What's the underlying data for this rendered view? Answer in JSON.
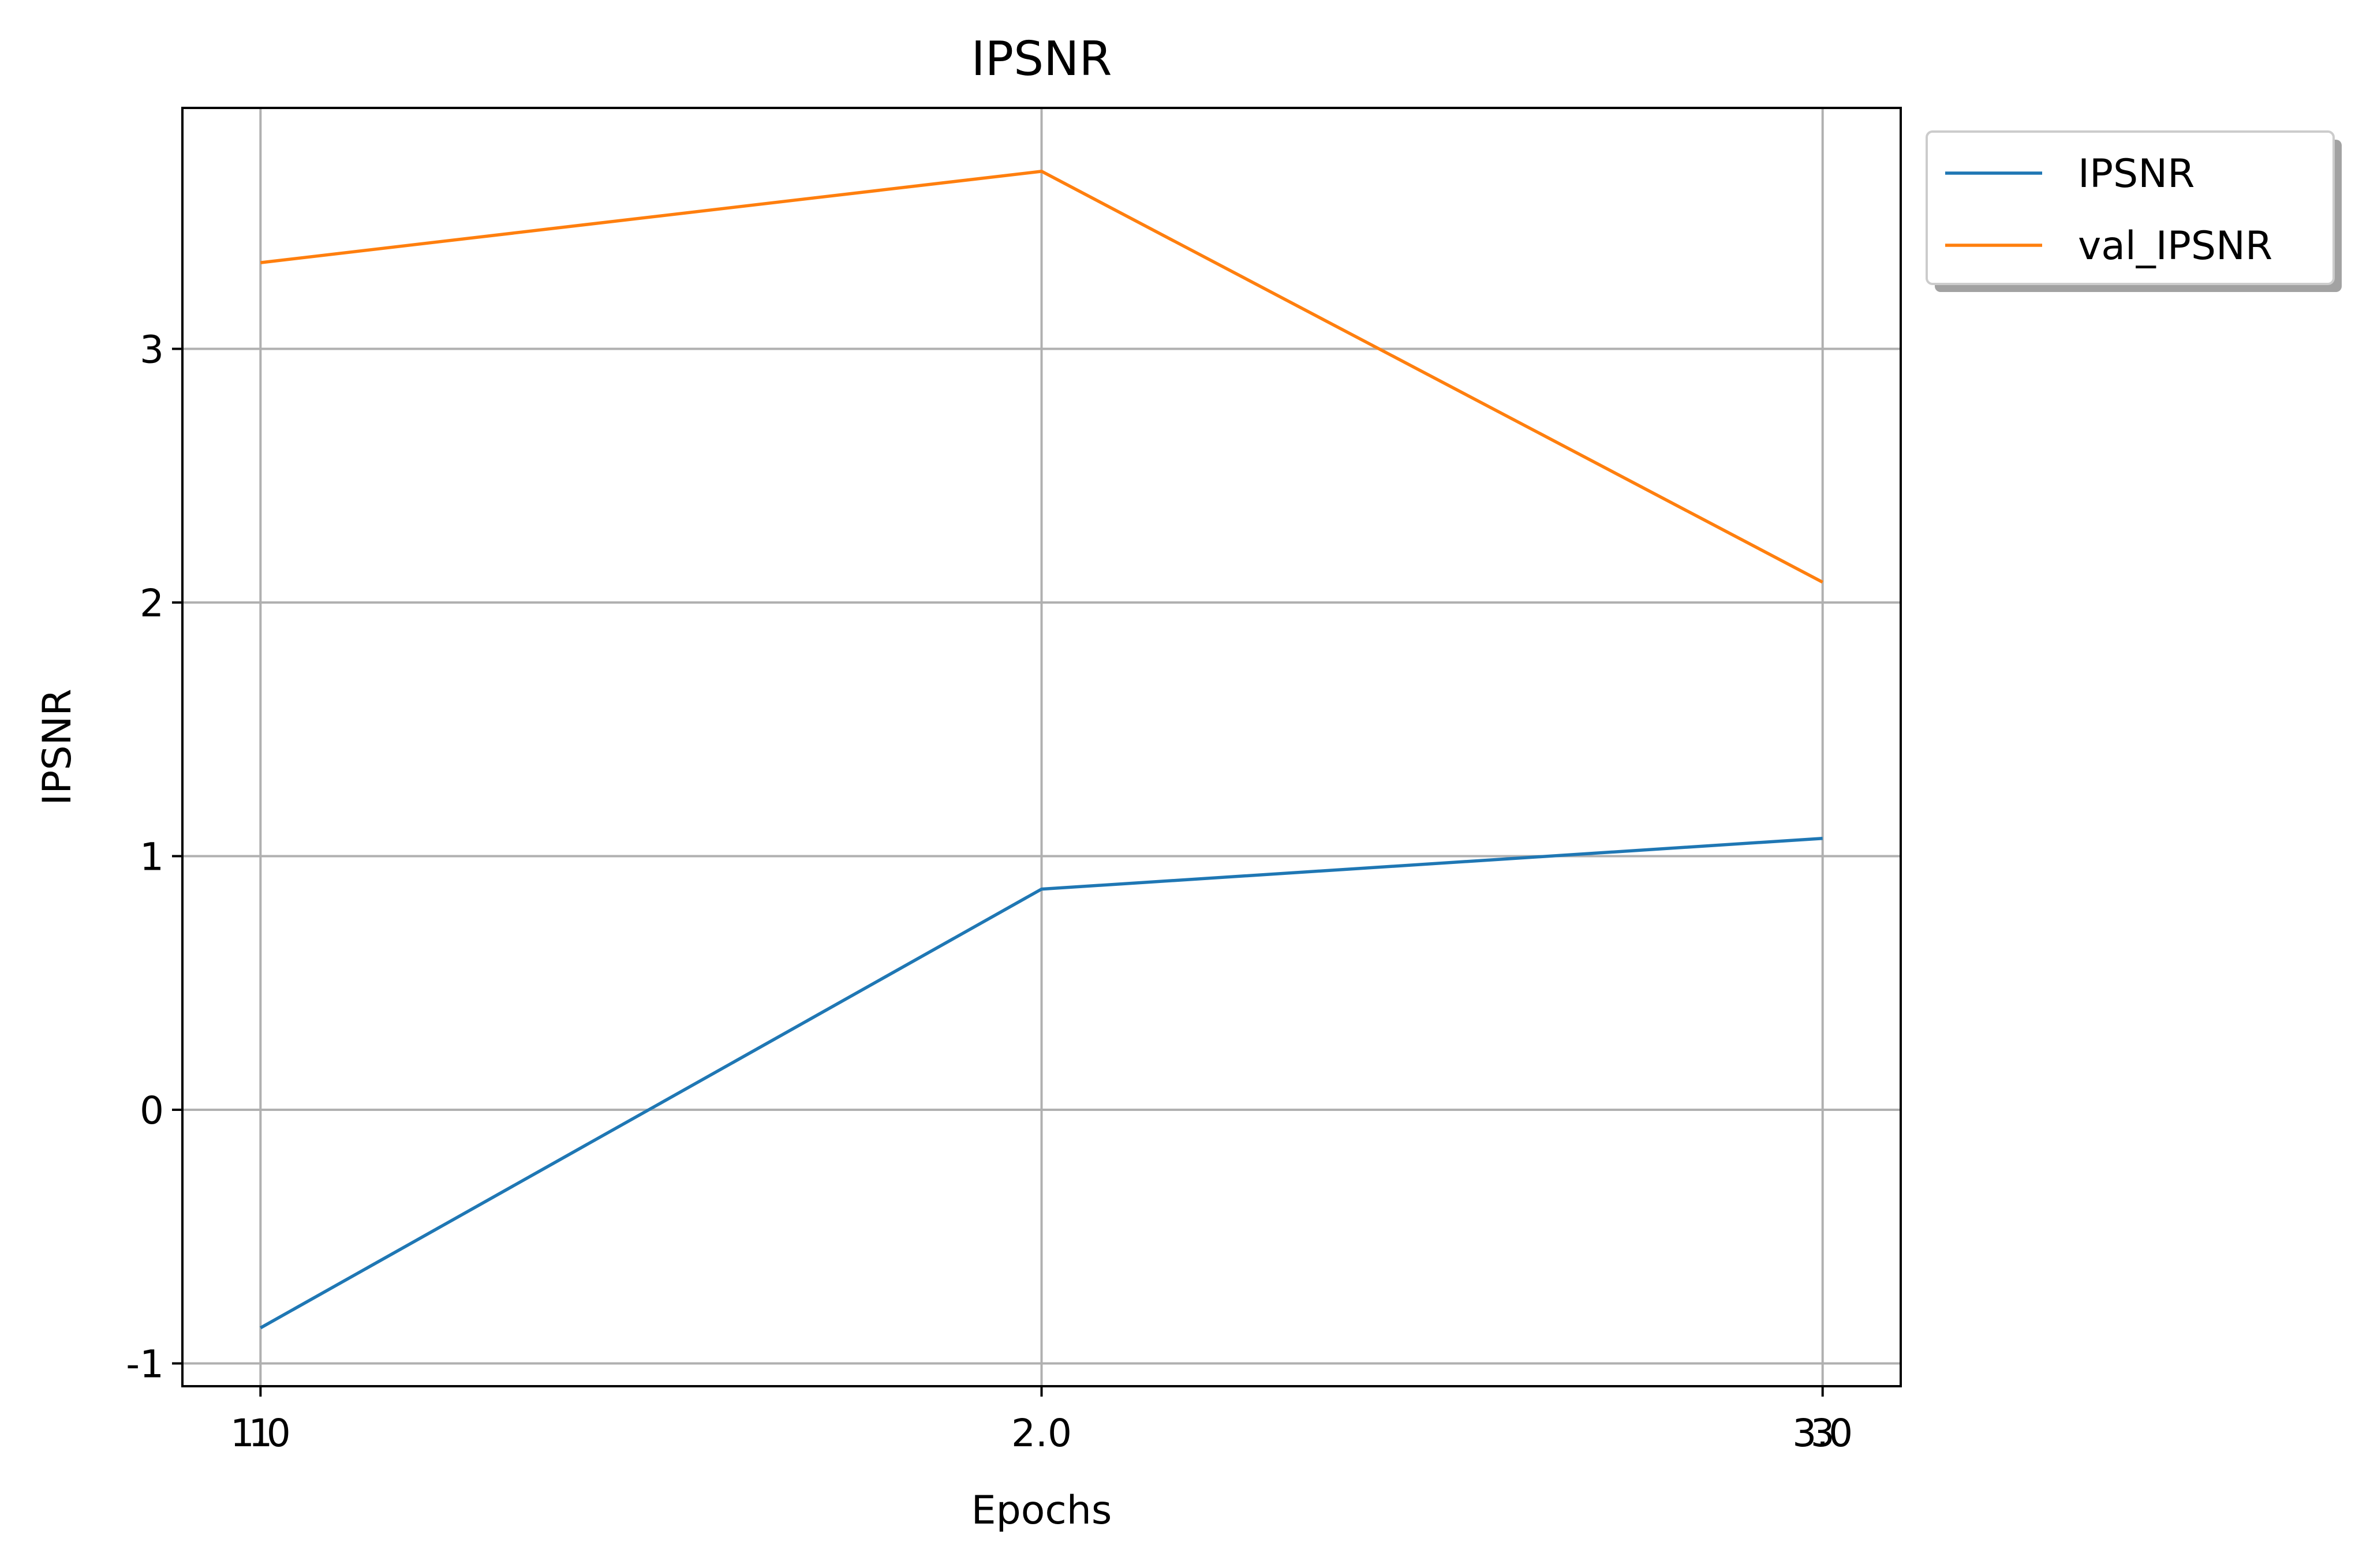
{
  "chart_data": {
    "type": "line",
    "title": "IPSNR",
    "xlabel": "Epochs",
    "ylabel": "IPSNR",
    "x": [
      1,
      2,
      3
    ],
    "xlim": [
      0.9,
      3.1
    ],
    "ylim": [
      -1.09,
      3.95
    ],
    "x_ticks": [
      {
        "value": 1,
        "labels": [
          "1",
          "1.0"
        ]
      },
      {
        "value": 2,
        "labels": [
          "2.0"
        ]
      },
      {
        "value": 3,
        "labels": [
          "3",
          "3.0"
        ]
      }
    ],
    "y_ticks": [
      {
        "value": -1,
        "label": "-1"
      },
      {
        "value": 0,
        "label": "0"
      },
      {
        "value": 1,
        "label": "1"
      },
      {
        "value": 2,
        "label": "2"
      },
      {
        "value": 3,
        "label": "3"
      }
    ],
    "grid": true,
    "legend_position": "outside-top-right",
    "series": [
      {
        "name": "IPSNR",
        "color": "#1f77b4",
        "values": [
          -0.86,
          0.87,
          1.07
        ]
      },
      {
        "name": "val_IPSNR",
        "color": "#ff7f0e",
        "values": [
          3.34,
          3.7,
          2.08
        ]
      }
    ]
  }
}
